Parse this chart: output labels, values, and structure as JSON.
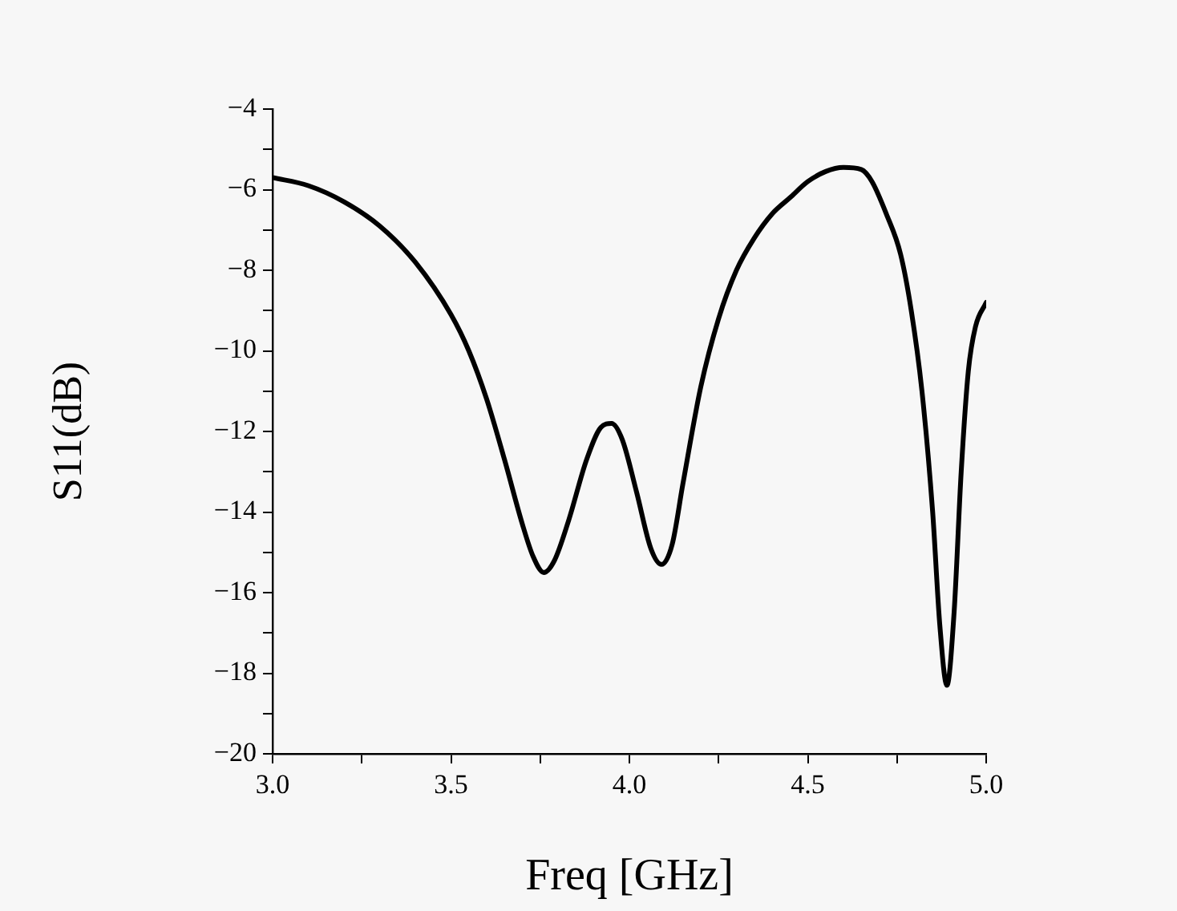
{
  "chart_data": {
    "type": "line",
    "xlabel": "Freq [GHz]",
    "ylabel": "S11(dB)",
    "x": [
      3.0,
      3.1,
      3.2,
      3.3,
      3.4,
      3.5,
      3.55,
      3.6,
      3.65,
      3.7,
      3.73,
      3.76,
      3.79,
      3.83,
      3.88,
      3.92,
      3.95,
      3.98,
      4.02,
      4.06,
      4.09,
      4.12,
      4.15,
      4.2,
      4.25,
      4.3,
      4.35,
      4.4,
      4.45,
      4.5,
      4.55,
      4.6,
      4.65,
      4.68,
      4.72,
      4.76,
      4.79,
      4.82,
      4.85,
      4.87,
      4.89,
      4.91,
      4.93,
      4.95,
      4.97,
      5.0
    ],
    "series": [
      {
        "color": "#000000",
        "values": [
          -5.7,
          -5.9,
          -6.3,
          -6.9,
          -7.8,
          -9.1,
          -10.0,
          -11.2,
          -12.7,
          -14.3,
          -15.1,
          -15.5,
          -15.2,
          -14.2,
          -12.7,
          -11.9,
          -11.8,
          -12.2,
          -13.5,
          -14.9,
          -15.3,
          -14.8,
          -13.3,
          -10.9,
          -9.2,
          -8.0,
          -7.2,
          -6.6,
          -6.2,
          -5.8,
          -5.55,
          -5.45,
          -5.5,
          -5.8,
          -6.6,
          -7.6,
          -9.0,
          -11.0,
          -14.0,
          -16.8,
          -18.3,
          -16.5,
          -13.0,
          -10.5,
          -9.4,
          -8.8
        ]
      }
    ],
    "xlim": [
      3.0,
      5.0
    ],
    "xticks": [
      {
        "value": 3,
        "label": "3.0"
      },
      3.5,
      {
        "value": 4,
        "label": "4.0"
      },
      4.5,
      {
        "value": 5,
        "label": "5.0"
      }
    ],
    "ylim": [
      -20,
      -4
    ],
    "yticks": [
      {
        "value": -20,
        "label": "−20"
      },
      {
        "value": -18,
        "label": "−18"
      },
      {
        "value": -16,
        "label": "−16"
      },
      {
        "value": -14,
        "label": "−14"
      },
      {
        "value": -12,
        "label": "−12"
      },
      {
        "value": -10,
        "label": "−10"
      },
      {
        "value": -8,
        "label": "−8"
      },
      {
        "value": -6,
        "label": "−6"
      },
      {
        "value": -4,
        "label": "−4"
      }
    ],
    "grid": false,
    "legend": false,
    "marker": "none",
    "line_style": "solid"
  }
}
